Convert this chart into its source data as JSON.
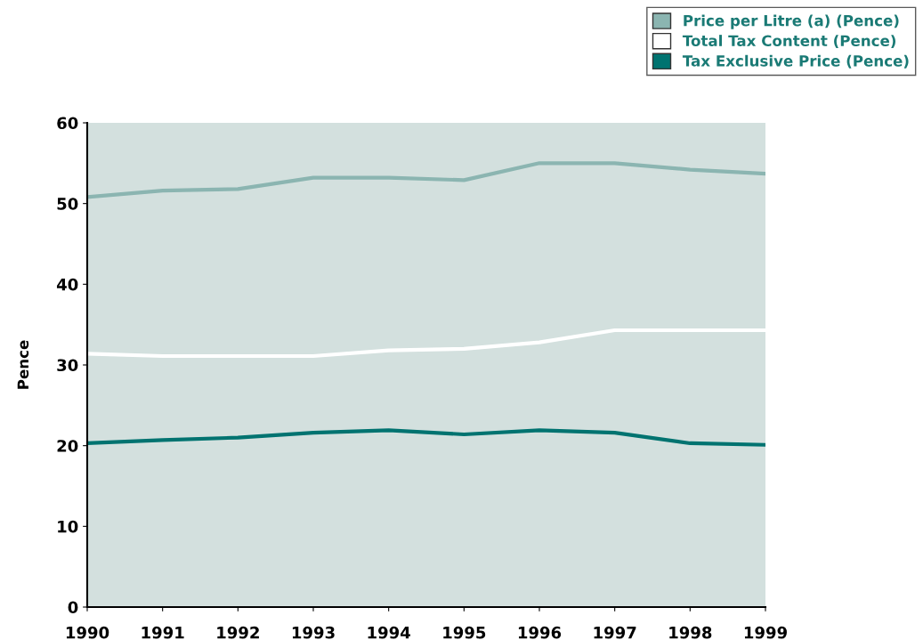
{
  "chart_data": {
    "type": "line",
    "ylabel": "Pence",
    "x": [
      1990,
      1991,
      1992,
      1993,
      1994,
      1995,
      1996,
      1997,
      1998,
      1999
    ],
    "xlim": [
      1990,
      1999
    ],
    "xticks": [
      1990,
      1991,
      1992,
      1993,
      1994,
      1995,
      1996,
      1997,
      1998,
      1999
    ],
    "ylim": [
      0,
      60
    ],
    "yticks": [
      0,
      10,
      20,
      30,
      40,
      50,
      60
    ],
    "grid": false,
    "legend": "top right",
    "marker": "none",
    "line_style": "solid",
    "series": [
      {
        "name": "Price per Litre (a) (Pence)",
        "color": "#8bb5b1",
        "values": [
          50.8,
          51.6,
          51.8,
          53.2,
          53.2,
          52.9,
          55.0,
          55.0,
          54.2,
          53.7
        ]
      },
      {
        "name": "Total Tax Content (Pence)",
        "color": "#ffffff",
        "values": [
          31.4,
          31.1,
          31.1,
          31.1,
          31.8,
          32.0,
          32.8,
          34.3,
          34.3,
          34.3
        ]
      },
      {
        "name": "Tax Exclusive Price (Pence)",
        "color": "#007370",
        "values": [
          20.3,
          20.7,
          21.0,
          21.6,
          21.9,
          21.4,
          21.9,
          21.6,
          20.3,
          20.1
        ]
      }
    ]
  }
}
